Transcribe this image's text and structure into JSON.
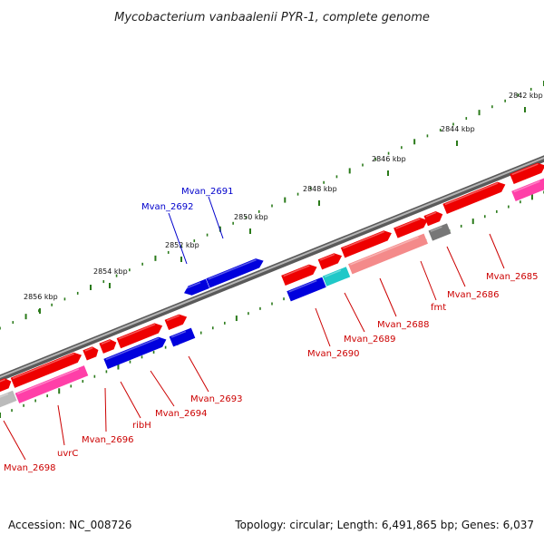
{
  "title": "Mycobacterium vanbaalenii PYR-1, complete genome",
  "footer": {
    "accession": "Accession: NC_008726",
    "topology": "Topology: circular; Length: 6,491,865 bp; Genes: 6,037"
  },
  "colors": {
    "forward_gene": "#ee0000",
    "reverse_gene": "#0000dd",
    "forward_label": "#cc0000",
    "reverse_label": "#0000cc",
    "backbone": "#888888",
    "tick": "#2a7a1a",
    "pink": "#ff3fa8",
    "light_pink": "#ff8fc8",
    "salmon": "#f48a8a",
    "cyan": "#20c8c8",
    "gray": "#777777",
    "light_gray": "#bbbbbb"
  },
  "ticks": {
    "major": [
      {
        "kbp": 2842,
        "label": "2842 kbp"
      },
      {
        "kbp": 2844,
        "label": "2844 kbp"
      },
      {
        "kbp": 2846,
        "label": "2846 kbp"
      },
      {
        "kbp": 2848,
        "label": "2848 kbp"
      },
      {
        "kbp": 2850,
        "label": "2850 kbp"
      },
      {
        "kbp": 2852,
        "label": "2852 kbp"
      },
      {
        "kbp": 2854,
        "label": "2854 kbp"
      },
      {
        "kbp": 2856,
        "label": "2856 kbp"
      }
    ]
  },
  "labels": [
    {
      "text": "Mvan_2691",
      "strand": "reverse"
    },
    {
      "text": "Mvan_2692",
      "strand": "reverse"
    },
    {
      "text": "Mvan_2685",
      "strand": "forward"
    },
    {
      "text": "Mvan_2686",
      "strand": "forward"
    },
    {
      "text": "fmt",
      "strand": "forward"
    },
    {
      "text": "Mvan_2688",
      "strand": "forward"
    },
    {
      "text": "Mvan_2689",
      "strand": "forward"
    },
    {
      "text": "Mvan_2690",
      "strand": "forward"
    },
    {
      "text": "Mvan_2693",
      "strand": "forward"
    },
    {
      "text": "Mvan_2694",
      "strand": "forward"
    },
    {
      "text": "ribH",
      "strand": "forward"
    },
    {
      "text": "Mvan_2696",
      "strand": "forward"
    },
    {
      "text": "uvrC",
      "strand": "forward"
    },
    {
      "text": "Mvan_2698",
      "strand": "forward"
    }
  ]
}
